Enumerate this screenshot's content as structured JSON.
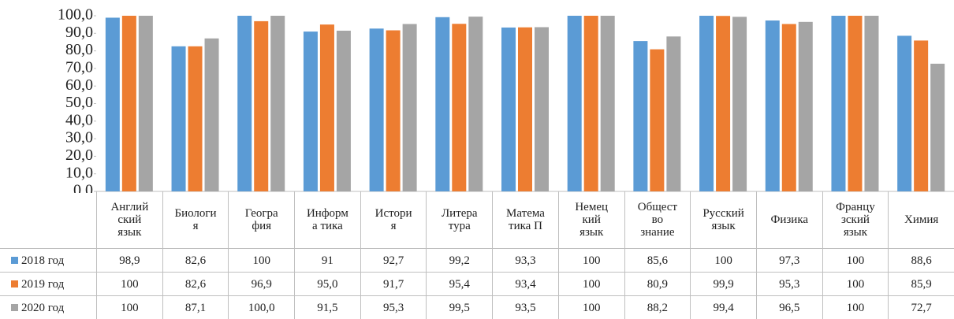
{
  "chart_data": {
    "type": "bar",
    "categories": [
      "Англий\nский\nязык",
      "Биологи\nя",
      "Геогра\nфия",
      "Информ\nа тика",
      "Истори\nя",
      "Литера\nтура",
      "Матема\nтика П",
      "Немец\nкий\nязык",
      "Общест\nво\nзнание",
      "Русский\nязык",
      "Физика",
      "Францу\nзский\nязык",
      "Химия"
    ],
    "series": [
      {
        "name": "2018 год",
        "color": "#5b9bd5",
        "values": [
          98.9,
          82.6,
          100,
          91,
          92.7,
          99.2,
          93.3,
          100,
          85.6,
          100,
          97.3,
          100,
          88.6
        ],
        "value_labels": [
          "98,9",
          "82,6",
          "100",
          "91",
          "92,7",
          "99,2",
          "93,3",
          "100",
          "85,6",
          "100",
          "97,3",
          "100",
          "88,6"
        ]
      },
      {
        "name": "2019 год",
        "color": "#ed7d31",
        "values": [
          100,
          82.6,
          96.9,
          95.0,
          91.7,
          95.4,
          93.4,
          100,
          80.9,
          99.9,
          95.3,
          100,
          85.9
        ],
        "value_labels": [
          "100",
          "82,6",
          "96,9",
          "95,0",
          "91,7",
          "95,4",
          "93,4",
          "100",
          "80,9",
          "99,9",
          "95,3",
          "100",
          "85,9"
        ]
      },
      {
        "name": "2020 год",
        "color": "#a5a5a5",
        "values": [
          100,
          87.1,
          100.0,
          91.5,
          95.3,
          99.5,
          93.5,
          100,
          88.2,
          99.4,
          96.5,
          100,
          72.7
        ],
        "value_labels": [
          "100",
          "87,1",
          "100,0",
          "91,5",
          "95,3",
          "99,5",
          "93,5",
          "100",
          "88,2",
          "99,4",
          "96,5",
          "100",
          "72,7"
        ]
      }
    ],
    "ylim": [
      0,
      100
    ],
    "yticks": [
      {
        "value": 0,
        "label": "0,0"
      },
      {
        "value": 10,
        "label": "10,0"
      },
      {
        "value": 20,
        "label": "20,0"
      },
      {
        "value": 30,
        "label": "30,0"
      },
      {
        "value": 40,
        "label": "40,0"
      },
      {
        "value": 50,
        "label": "50,0"
      },
      {
        "value": 60,
        "label": "60,0"
      },
      {
        "value": 70,
        "label": "70,0"
      },
      {
        "value": 80,
        "label": "80,0"
      },
      {
        "value": 90,
        "label": "90,0"
      },
      {
        "value": 100,
        "label": "100,0"
      }
    ],
    "grid": false
  }
}
